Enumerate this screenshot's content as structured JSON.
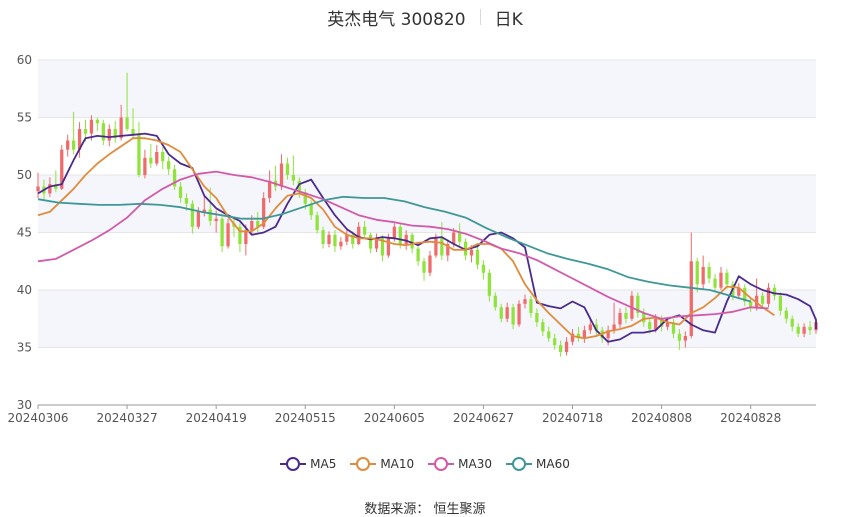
{
  "header": {
    "title": "英杰电气 300820",
    "period": "日K"
  },
  "source": "数据来源：  恒生聚源",
  "colors": {
    "up": "#ef6a6a",
    "down": "#8fe33a",
    "grid": "#e6e6e6",
    "band": "#f5f6fb",
    "axis_text": "#555555"
  },
  "chart_data": {
    "type": "candlestick",
    "y_ticks": [
      30,
      35,
      40,
      45,
      50,
      55,
      60
    ],
    "ylim": [
      30,
      60
    ],
    "x_tick_labels": [
      "20240306",
      "20240327",
      "20240419",
      "20240515",
      "20240605",
      "20240627",
      "20240718",
      "20240808",
      "20240828"
    ],
    "x_tick_index": [
      0,
      15,
      30,
      45,
      60,
      75,
      90,
      105,
      120
    ],
    "candles": [
      [
        48.6,
        49.0,
        50.2,
        48.0
      ],
      [
        49.0,
        48.4,
        49.6,
        47.8
      ],
      [
        48.4,
        49.2,
        49.8,
        48.1
      ],
      [
        49.2,
        48.8,
        50.4,
        48.5
      ],
      [
        48.8,
        52.2,
        52.6,
        48.7
      ],
      [
        52.2,
        53.0,
        53.5,
        51.6
      ],
      [
        53.0,
        52.2,
        55.5,
        51.8
      ],
      [
        52.2,
        54.0,
        54.6,
        51.5
      ],
      [
        54.0,
        53.6,
        54.8,
        52.9
      ],
      [
        53.6,
        54.8,
        55.2,
        53.0
      ],
      [
        54.8,
        54.5,
        55.0,
        53.8
      ],
      [
        54.5,
        53.0,
        54.8,
        52.6
      ],
      [
        53.0,
        54.0,
        54.4,
        52.5
      ],
      [
        54.0,
        53.2,
        54.7,
        52.8
      ],
      [
        53.2,
        55.0,
        56.1,
        53.0
      ],
      [
        55.0,
        54.0,
        58.9,
        53.8
      ],
      [
        54.0,
        53.5,
        55.8,
        53.2
      ],
      [
        53.5,
        50.0,
        54.6,
        49.8
      ],
      [
        50.0,
        51.5,
        52.2,
        49.7
      ],
      [
        51.5,
        51.0,
        52.7,
        50.6
      ],
      [
        51.0,
        52.0,
        52.6,
        50.8
      ],
      [
        52.0,
        51.2,
        52.4,
        50.5
      ],
      [
        51.2,
        50.5,
        51.6,
        50.0
      ],
      [
        50.5,
        49.0,
        50.9,
        48.7
      ],
      [
        49.0,
        48.0,
        49.4,
        47.6
      ],
      [
        48.0,
        47.5,
        48.4,
        46.9
      ],
      [
        47.5,
        45.5,
        47.8,
        44.9
      ],
      [
        45.5,
        46.8,
        47.2,
        45.3
      ],
      [
        46.8,
        47.0,
        48.2,
        46.4
      ],
      [
        47.0,
        46.0,
        48.9,
        45.6
      ],
      [
        46.0,
        46.2,
        46.9,
        45.0
      ],
      [
        46.2,
        43.8,
        46.4,
        43.3
      ],
      [
        43.8,
        45.8,
        46.2,
        43.6
      ],
      [
        45.8,
        45.5,
        46.4,
        44.6
      ],
      [
        45.5,
        44.0,
        45.8,
        43.3
      ],
      [
        44.0,
        45.2,
        45.7,
        43.0
      ],
      [
        45.2,
        46.0,
        46.5,
        44.8
      ],
      [
        46.0,
        45.5,
        46.8,
        45.0
      ],
      [
        45.5,
        48.0,
        48.5,
        45.3
      ],
      [
        48.0,
        49.5,
        50.4,
        47.6
      ],
      [
        49.5,
        49.0,
        50.8,
        48.6
      ],
      [
        49.0,
        51.0,
        51.8,
        48.7
      ],
      [
        51.0,
        50.0,
        51.5,
        49.6
      ],
      [
        50.0,
        49.5,
        51.7,
        49.1
      ],
      [
        49.5,
        48.5,
        49.8,
        48.0
      ],
      [
        48.5,
        47.5,
        48.8,
        47.0
      ],
      [
        47.5,
        46.5,
        47.8,
        46.1
      ],
      [
        46.5,
        45.2,
        46.8,
        44.9
      ],
      [
        45.2,
        44.0,
        45.5,
        43.6
      ],
      [
        44.0,
        44.8,
        45.1,
        43.7
      ],
      [
        44.8,
        43.8,
        45.2,
        43.3
      ],
      [
        43.8,
        44.2,
        44.6,
        43.5
      ],
      [
        44.2,
        44.8,
        45.3,
        43.9
      ],
      [
        44.8,
        44.0,
        45.1,
        43.6
      ],
      [
        44.0,
        45.5,
        45.9,
        43.9
      ],
      [
        45.5,
        44.8,
        46.0,
        44.5
      ],
      [
        44.8,
        43.6,
        45.0,
        43.2
      ],
      [
        43.6,
        44.5,
        44.9,
        43.3
      ],
      [
        44.5,
        43.0,
        44.8,
        42.5
      ],
      [
        43.0,
        44.5,
        44.9,
        42.8
      ],
      [
        44.5,
        45.5,
        45.8,
        44.2
      ],
      [
        45.5,
        44.0,
        45.8,
        43.6
      ],
      [
        44.0,
        44.8,
        45.2,
        43.5
      ],
      [
        44.8,
        43.6,
        45.0,
        43.2
      ],
      [
        43.6,
        42.5,
        43.8,
        42.1
      ],
      [
        42.5,
        41.5,
        42.8,
        40.8
      ],
      [
        41.5,
        43.0,
        43.4,
        41.2
      ],
      [
        43.0,
        44.5,
        44.9,
        42.8
      ],
      [
        44.5,
        43.0,
        45.9,
        42.6
      ],
      [
        43.0,
        44.0,
        44.4,
        42.5
      ],
      [
        44.0,
        45.0,
        45.4,
        43.7
      ],
      [
        45.0,
        44.2,
        45.8,
        43.8
      ],
      [
        44.2,
        43.0,
        44.5,
        42.6
      ],
      [
        43.0,
        43.5,
        43.9,
        42.4
      ],
      [
        43.5,
        42.2,
        43.8,
        41.8
      ],
      [
        42.2,
        41.5,
        42.6,
        40.9
      ],
      [
        41.5,
        39.5,
        41.8,
        39.0
      ],
      [
        39.5,
        38.5,
        39.8,
        38.2
      ],
      [
        38.5,
        37.5,
        38.8,
        37.2
      ],
      [
        37.5,
        38.5,
        38.9,
        37.2
      ],
      [
        38.5,
        37.0,
        38.8,
        36.6
      ],
      [
        37.0,
        38.8,
        39.1,
        36.8
      ],
      [
        38.8,
        39.2,
        39.6,
        38.4
      ],
      [
        39.2,
        38.0,
        39.5,
        37.6
      ],
      [
        38.0,
        37.2,
        38.4,
        36.8
      ],
      [
        37.2,
        36.4,
        37.5,
        36.0
      ],
      [
        36.4,
        35.8,
        36.8,
        35.5
      ],
      [
        35.8,
        35.2,
        36.2,
        34.8
      ],
      [
        35.2,
        34.6,
        35.6,
        34.2
      ],
      [
        34.6,
        35.5,
        35.9,
        34.3
      ],
      [
        35.5,
        36.2,
        36.6,
        35.2
      ],
      [
        36.2,
        35.8,
        36.8,
        35.5
      ],
      [
        35.8,
        36.5,
        36.9,
        35.4
      ],
      [
        36.5,
        37.0,
        37.6,
        36.2
      ],
      [
        37.0,
        36.5,
        37.5,
        36.1
      ],
      [
        36.5,
        35.8,
        36.8,
        35.4
      ],
      [
        35.8,
        36.5,
        36.9,
        35.2
      ],
      [
        36.5,
        37.0,
        38.9,
        36.2
      ],
      [
        37.0,
        38.0,
        38.4,
        36.7
      ],
      [
        38.0,
        37.5,
        38.5,
        37.1
      ],
      [
        37.5,
        39.5,
        39.9,
        37.3
      ],
      [
        39.5,
        38.0,
        39.8,
        37.6
      ],
      [
        38.0,
        37.2,
        38.4,
        36.8
      ],
      [
        37.2,
        36.6,
        37.6,
        36.2
      ],
      [
        36.6,
        37.5,
        37.9,
        36.3
      ],
      [
        37.5,
        36.8,
        37.8,
        36.4
      ],
      [
        36.8,
        37.2,
        37.6,
        36.5
      ],
      [
        37.2,
        36.2,
        37.5,
        35.8
      ],
      [
        36.2,
        35.6,
        36.6,
        34.8
      ],
      [
        35.6,
        36.0,
        36.4,
        35.0
      ],
      [
        36.0,
        42.5,
        45.0,
        35.8
      ],
      [
        42.5,
        40.5,
        42.8,
        39.8
      ],
      [
        40.5,
        42.0,
        43.0,
        40.1
      ],
      [
        42.0,
        41.0,
        42.4,
        40.6
      ],
      [
        41.0,
        40.2,
        41.4,
        39.8
      ],
      [
        40.2,
        41.5,
        42.0,
        40.0
      ],
      [
        41.5,
        40.5,
        41.8,
        40.1
      ],
      [
        40.5,
        39.5,
        40.8,
        39.1
      ],
      [
        39.5,
        40.2,
        40.6,
        39.2
      ],
      [
        40.2,
        39.0,
        40.5,
        38.6
      ],
      [
        39.0,
        38.5,
        39.3,
        38.1
      ],
      [
        38.5,
        39.5,
        41.0,
        38.2
      ],
      [
        39.5,
        38.8,
        39.8,
        38.4
      ],
      [
        38.8,
        40.2,
        40.6,
        38.5
      ],
      [
        40.2,
        39.5,
        40.5,
        39.1
      ],
      [
        39.5,
        38.2,
        39.8,
        37.8
      ],
      [
        38.2,
        37.5,
        38.5,
        37.1
      ],
      [
        37.5,
        36.8,
        37.8,
        36.4
      ],
      [
        36.8,
        36.2,
        37.1,
        35.9
      ],
      [
        36.2,
        36.8,
        37.1,
        35.9
      ],
      [
        36.8,
        36.5,
        37.3,
        36.1
      ],
      [
        36.5,
        37.2,
        37.6,
        36.2
      ]
    ],
    "series": [
      {
        "name": "MA5",
        "color": "#4b2a8f",
        "values": [
          48.4,
          49.0,
          49.2,
          51.3,
          53.2,
          53.4,
          53.3,
          53.4,
          53.5,
          53.6,
          53.4,
          51.8,
          51.0,
          50.6,
          48.2,
          47.1,
          46.5,
          46.0,
          44.8,
          45.0,
          45.5,
          47.5,
          49.2,
          49.6,
          48.0,
          46.5,
          45.3,
          44.6,
          44.4,
          44.6,
          44.5,
          44.3,
          43.9,
          44.5,
          44.6,
          44.0,
          43.5,
          43.8,
          44.8,
          45.0,
          44.5,
          43.7,
          38.9,
          38.6,
          38.4,
          39.0,
          38.5,
          36.5,
          35.5,
          35.7,
          36.3,
          36.3,
          36.5,
          37.5,
          37.8,
          37.0,
          36.5,
          36.3,
          39.0,
          41.2,
          40.5,
          40.0,
          39.7,
          39.6,
          39.2,
          38.6,
          37.4,
          36.8,
          36.6
        ]
      },
      {
        "name": "MA10",
        "color": "#e08c3c",
        "values": [
          46.5,
          46.8,
          47.8,
          48.8,
          50.0,
          51.0,
          51.8,
          52.5,
          53.2,
          53.2,
          53.0,
          52.6,
          52.0,
          50.5,
          49.0,
          48.0,
          46.4,
          45.1,
          45.1,
          45.8,
          47.1,
          48.2,
          48.4,
          48.0,
          47.0,
          45.5,
          44.8,
          44.5,
          44.5,
          44.3,
          44.0,
          43.9,
          44.1,
          44.2,
          44.1,
          43.5,
          43.5,
          44.0,
          44.0,
          43.6,
          42.5,
          40.5,
          39.1,
          38.0,
          37.0,
          36.0,
          35.8,
          36.0,
          36.4,
          36.6,
          36.9,
          37.5,
          37.6,
          37.2,
          37.0,
          38.0,
          38.5,
          39.3,
          40.3,
          40.2,
          39.3,
          38.5,
          37.8
        ]
      },
      {
        "name": "MA30",
        "color": "#d25aaa",
        "values": [
          42.5,
          42.7,
          43.5,
          44.3,
          45.2,
          46.3,
          47.8,
          48.8,
          49.6,
          50.1,
          50.3,
          50.0,
          49.8,
          49.4,
          48.9,
          48.4,
          47.9,
          47.2,
          46.5,
          46.1,
          45.9,
          45.6,
          45.5,
          45.3,
          44.9,
          44.3,
          43.6,
          43.2,
          42.6,
          41.8,
          41.0,
          40.2,
          39.4,
          38.7,
          38.0,
          37.5,
          37.7,
          37.8,
          37.9,
          38.1,
          38.5,
          38.4
        ]
      },
      {
        "name": "MA60",
        "color": "#3f9797",
        "values": [
          47.9,
          47.6,
          47.5,
          47.4,
          47.4,
          47.5,
          47.4,
          47.2,
          46.8,
          46.5,
          46.2,
          46.2,
          46.6,
          47.2,
          47.8,
          48.1,
          48.0,
          48.0,
          47.7,
          47.2,
          46.8,
          46.3,
          45.4,
          44.6,
          43.9,
          43.2,
          42.7,
          42.3,
          41.8,
          41.1,
          40.7,
          40.4,
          40.2,
          40.0,
          39.5,
          39.0
        ]
      }
    ],
    "series_x_step": [
      2,
      2,
      3,
      3.4285
    ]
  }
}
